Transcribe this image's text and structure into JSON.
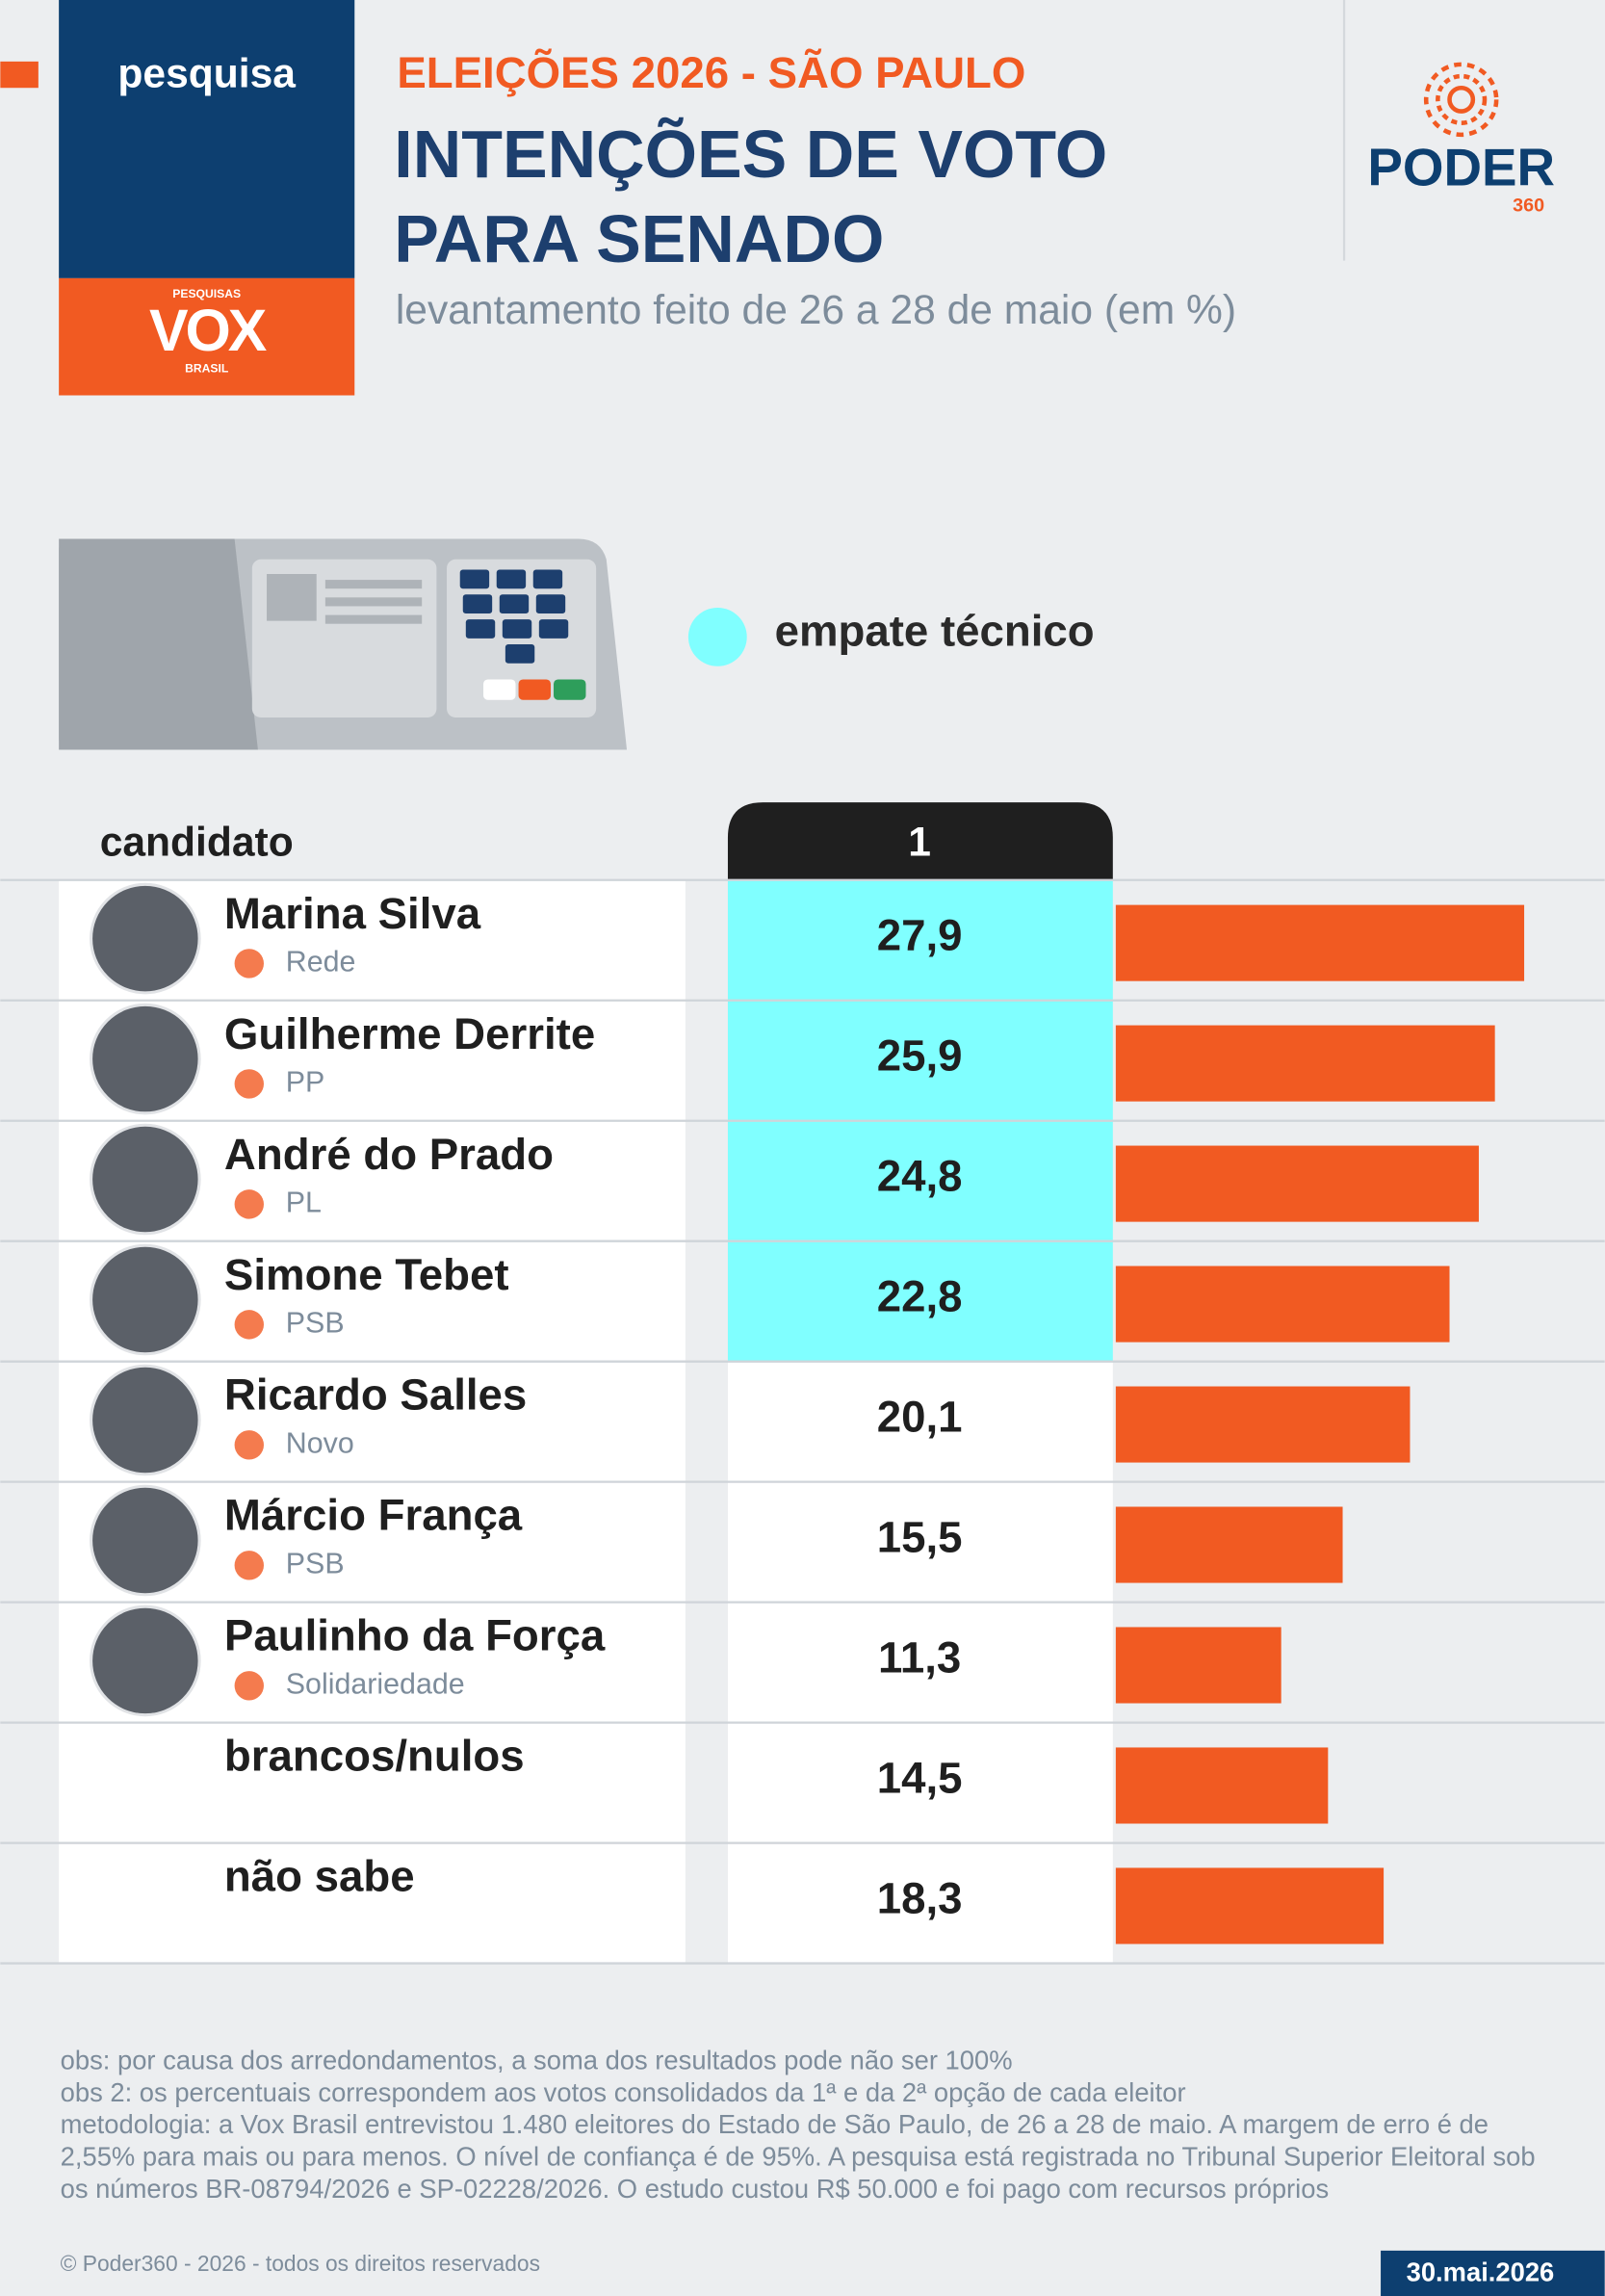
{
  "header": {
    "section": "pesquisa",
    "kicker": "ELEIÇÕES 2026 - SÃO PAULO",
    "title": "INTENÇÕES DE VOTO PARA SENADO",
    "subtitle": "levantamento feito de 26 a 28 de maio (em %)",
    "pollster_logo": {
      "top": "PESQUISAS",
      "name": "VOX",
      "bottom": "BRASIL"
    },
    "brand_logo": {
      "name": "PODER",
      "number": "360"
    }
  },
  "chart_data": {
    "type": "bar",
    "legend": {
      "label": "empate técnico",
      "color": "#80ffff"
    },
    "category_header": "candidato",
    "value_header": "1",
    "categories": [
      "Marina Silva",
      "Guilherme Derrite",
      "André do Prado",
      "Simone Tebet",
      "Ricardo Salles",
      "Márcio França",
      "Paulinho da Força",
      "brancos/nulos",
      "não sabe"
    ],
    "parties": [
      "Rede",
      "PP",
      "PL",
      "PSB",
      "Novo",
      "PSB",
      "Solidariedade",
      null,
      null
    ],
    "values": [
      27.9,
      25.9,
      24.8,
      22.8,
      20.1,
      15.5,
      11.3,
      14.5,
      18.3
    ],
    "value_labels": [
      "27,9",
      "25,9",
      "24,8",
      "22,8",
      "20,1",
      "15,5",
      "11,3",
      "14,5",
      "18,3"
    ],
    "tied": [
      true,
      true,
      true,
      true,
      false,
      false,
      false,
      false,
      false
    ],
    "color": "#f15a22"
  },
  "footer": {
    "notes": [
      "obs: por causa dos arredondamentos, a soma dos resultados pode não ser 100%",
      "obs 2: os percentuais correspondem aos votos consolidados da 1ª e da 2ª opção de cada eleitor",
      "metodologia: a Vox Brasil entrevistou 1.480 eleitores do Estado de São Paulo, de 26 a 28 de maio. A margem de erro é de 2,55% para mais ou para menos. O nível de confiança é de 95%. A pesquisa está registrada no Tribunal Superior Eleitoral sob os números BR-08794/2026 e SP-02228/2026. O estudo custou R$ 50.000 e foi pago com recursos próprios"
    ],
    "copyright": "© Poder360 - 2026 - todos os direitos reservados",
    "date": "30.mai.2026"
  }
}
